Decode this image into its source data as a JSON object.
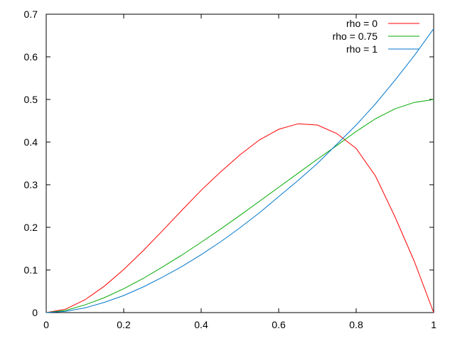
{
  "chart_data": {
    "type": "line",
    "title": "",
    "xlabel": "",
    "ylabel": "",
    "xlim": [
      0,
      1
    ],
    "ylim": [
      0,
      0.7
    ],
    "xticks": [
      "0",
      "0.2",
      "0.4",
      "0.6",
      "0.8",
      "1"
    ],
    "yticks": [
      "0",
      "0.1",
      "0.2",
      "0.3",
      "0.4",
      "0.5",
      "0.6",
      "0.7"
    ],
    "grid": false,
    "legend_position": "top-right",
    "series": [
      {
        "name": "rho = 0",
        "color": "#ff0000",
        "x": [
          0,
          0.05,
          0.1,
          0.15,
          0.2,
          0.25,
          0.3,
          0.35,
          0.4,
          0.45,
          0.5,
          0.55,
          0.6,
          0.65,
          0.7,
          0.75,
          0.8,
          0.85,
          0.9,
          0.95,
          1
        ],
        "y": [
          0,
          0.008,
          0.03,
          0.062,
          0.101,
          0.145,
          0.192,
          0.24,
          0.287,
          0.33,
          0.37,
          0.405,
          0.43,
          0.443,
          0.44,
          0.42,
          0.385,
          0.32,
          0.225,
          0.12,
          0
        ]
      },
      {
        "name": "rho = 0.75",
        "color": "#00aa00",
        "x": [
          0,
          0.05,
          0.1,
          0.15,
          0.2,
          0.25,
          0.3,
          0.35,
          0.4,
          0.45,
          0.5,
          0.55,
          0.6,
          0.65,
          0.7,
          0.75,
          0.8,
          0.85,
          0.9,
          0.95,
          1
        ],
        "y": [
          0,
          0.005,
          0.018,
          0.035,
          0.056,
          0.08,
          0.107,
          0.135,
          0.165,
          0.196,
          0.228,
          0.261,
          0.294,
          0.327,
          0.36,
          0.392,
          0.425,
          0.455,
          0.478,
          0.493,
          0.5
        ]
      },
      {
        "name": "rho = 1",
        "color": "#0077cc",
        "x": [
          0,
          0.05,
          0.1,
          0.15,
          0.2,
          0.25,
          0.3,
          0.35,
          0.4,
          0.45,
          0.5,
          0.55,
          0.6,
          0.65,
          0.7,
          0.75,
          0.8,
          0.85,
          0.9,
          0.95,
          1
        ],
        "y": [
          0,
          0.003,
          0.011,
          0.024,
          0.04,
          0.06,
          0.083,
          0.108,
          0.136,
          0.166,
          0.199,
          0.234,
          0.272,
          0.31,
          0.35,
          0.395,
          0.44,
          0.49,
          0.545,
          0.603,
          0.666
        ]
      }
    ]
  }
}
